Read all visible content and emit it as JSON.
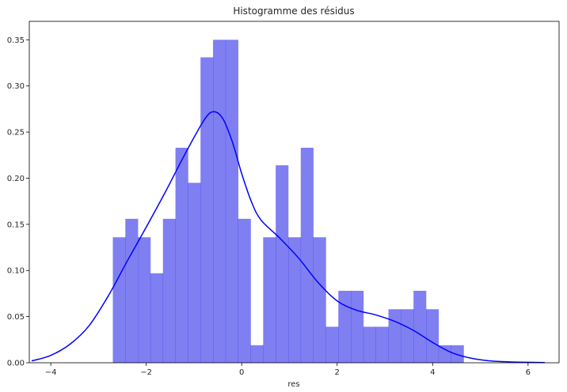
{
  "chart_data": {
    "type": "bar",
    "title": "Histogramme des résidus",
    "xlabel": "res",
    "ylabel": "",
    "xlim": [
      -4.45,
      6.65
    ],
    "ylim": [
      0,
      0.37
    ],
    "xticks": [
      -4,
      -2,
      0,
      2,
      4,
      6
    ],
    "yticks": [
      0.0,
      0.05,
      0.1,
      0.15,
      0.2,
      0.25,
      0.3,
      0.35
    ],
    "xtick_labels": [
      "−4",
      "−2",
      "0",
      "2",
      "4",
      "6"
    ],
    "ytick_labels": [
      "0.00",
      "0.05",
      "0.10",
      "0.15",
      "0.20",
      "0.25",
      "0.30",
      "0.35"
    ],
    "grid": false,
    "colors": {
      "bars": "#0000e6",
      "bar_opacity": 0.5,
      "curve": "#0000ff"
    },
    "bin_start": -2.7,
    "bin_width": 0.2625,
    "values": [
      0.136,
      0.156,
      0.136,
      0.097,
      0.156,
      0.233,
      0.195,
      0.331,
      0.35,
      0.35,
      0.156,
      0.019,
      0.136,
      0.214,
      0.136,
      0.233,
      0.136,
      0.039,
      0.078,
      0.078,
      0.039,
      0.039,
      0.058,
      0.058,
      0.078,
      0.058,
      0.019,
      0.019
    ],
    "kde": {
      "x": [
        -4.4,
        -4.0,
        -3.6,
        -3.2,
        -2.8,
        -2.4,
        -2.0,
        -1.6,
        -1.2,
        -0.8,
        -0.6,
        -0.4,
        -0.2,
        0.0,
        0.2,
        0.4,
        0.8,
        1.2,
        1.6,
        2.0,
        2.4,
        2.8,
        3.2,
        3.6,
        4.0,
        4.4,
        4.8,
        5.2,
        5.6,
        6.0,
        6.35
      ],
      "y": [
        0.002,
        0.008,
        0.02,
        0.04,
        0.072,
        0.11,
        0.147,
        0.185,
        0.225,
        0.262,
        0.272,
        0.265,
        0.24,
        0.205,
        0.175,
        0.155,
        0.135,
        0.113,
        0.087,
        0.067,
        0.057,
        0.052,
        0.045,
        0.035,
        0.022,
        0.011,
        0.005,
        0.002,
        0.001,
        0.0005,
        0.0002
      ]
    }
  }
}
